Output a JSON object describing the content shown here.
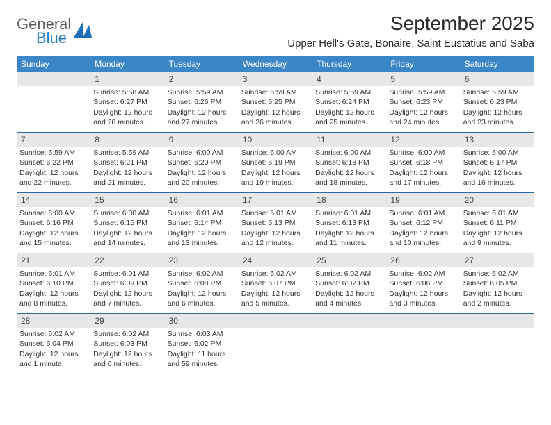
{
  "brand": {
    "line1": "General",
    "line2": "Blue"
  },
  "title": "September 2025",
  "location": "Upper Hell's Gate, Bonaire, Saint Eustatius and Saba",
  "colors": {
    "header_bg": "#3b86c6",
    "rule": "#2b6aa3",
    "daynum_bg": "#e7e7e7",
    "text": "#333333"
  },
  "daysOfWeek": [
    "Sunday",
    "Monday",
    "Tuesday",
    "Wednesday",
    "Thursday",
    "Friday",
    "Saturday"
  ],
  "weeks": [
    [
      null,
      {
        "n": "1",
        "sr": "5:58 AM",
        "ss": "6:27 PM",
        "dl": "12 hours and 28 minutes."
      },
      {
        "n": "2",
        "sr": "5:59 AM",
        "ss": "6:26 PM",
        "dl": "12 hours and 27 minutes."
      },
      {
        "n": "3",
        "sr": "5:59 AM",
        "ss": "6:25 PM",
        "dl": "12 hours and 26 minutes."
      },
      {
        "n": "4",
        "sr": "5:59 AM",
        "ss": "6:24 PM",
        "dl": "12 hours and 25 minutes."
      },
      {
        "n": "5",
        "sr": "5:59 AM",
        "ss": "6:23 PM",
        "dl": "12 hours and 24 minutes."
      },
      {
        "n": "6",
        "sr": "5:59 AM",
        "ss": "6:23 PM",
        "dl": "12 hours and 23 minutes."
      }
    ],
    [
      {
        "n": "7",
        "sr": "5:59 AM",
        "ss": "6:22 PM",
        "dl": "12 hours and 22 minutes."
      },
      {
        "n": "8",
        "sr": "5:59 AM",
        "ss": "6:21 PM",
        "dl": "12 hours and 21 minutes."
      },
      {
        "n": "9",
        "sr": "6:00 AM",
        "ss": "6:20 PM",
        "dl": "12 hours and 20 minutes."
      },
      {
        "n": "10",
        "sr": "6:00 AM",
        "ss": "6:19 PM",
        "dl": "12 hours and 19 minutes."
      },
      {
        "n": "11",
        "sr": "6:00 AM",
        "ss": "6:18 PM",
        "dl": "12 hours and 18 minutes."
      },
      {
        "n": "12",
        "sr": "6:00 AM",
        "ss": "6:18 PM",
        "dl": "12 hours and 17 minutes."
      },
      {
        "n": "13",
        "sr": "6:00 AM",
        "ss": "6:17 PM",
        "dl": "12 hours and 16 minutes."
      }
    ],
    [
      {
        "n": "14",
        "sr": "6:00 AM",
        "ss": "6:16 PM",
        "dl": "12 hours and 15 minutes."
      },
      {
        "n": "15",
        "sr": "6:00 AM",
        "ss": "6:15 PM",
        "dl": "12 hours and 14 minutes."
      },
      {
        "n": "16",
        "sr": "6:01 AM",
        "ss": "6:14 PM",
        "dl": "12 hours and 13 minutes."
      },
      {
        "n": "17",
        "sr": "6:01 AM",
        "ss": "6:13 PM",
        "dl": "12 hours and 12 minutes."
      },
      {
        "n": "18",
        "sr": "6:01 AM",
        "ss": "6:13 PM",
        "dl": "12 hours and 11 minutes."
      },
      {
        "n": "19",
        "sr": "6:01 AM",
        "ss": "6:12 PM",
        "dl": "12 hours and 10 minutes."
      },
      {
        "n": "20",
        "sr": "6:01 AM",
        "ss": "6:11 PM",
        "dl": "12 hours and 9 minutes."
      }
    ],
    [
      {
        "n": "21",
        "sr": "6:01 AM",
        "ss": "6:10 PM",
        "dl": "12 hours and 8 minutes."
      },
      {
        "n": "22",
        "sr": "6:01 AM",
        "ss": "6:09 PM",
        "dl": "12 hours and 7 minutes."
      },
      {
        "n": "23",
        "sr": "6:02 AM",
        "ss": "6:08 PM",
        "dl": "12 hours and 6 minutes."
      },
      {
        "n": "24",
        "sr": "6:02 AM",
        "ss": "6:07 PM",
        "dl": "12 hours and 5 minutes."
      },
      {
        "n": "25",
        "sr": "6:02 AM",
        "ss": "6:07 PM",
        "dl": "12 hours and 4 minutes."
      },
      {
        "n": "26",
        "sr": "6:02 AM",
        "ss": "6:06 PM",
        "dl": "12 hours and 3 minutes."
      },
      {
        "n": "27",
        "sr": "6:02 AM",
        "ss": "6:05 PM",
        "dl": "12 hours and 2 minutes."
      }
    ],
    [
      {
        "n": "28",
        "sr": "6:02 AM",
        "ss": "6:04 PM",
        "dl": "12 hours and 1 minute."
      },
      {
        "n": "29",
        "sr": "6:02 AM",
        "ss": "6:03 PM",
        "dl": "12 hours and 0 minutes."
      },
      {
        "n": "30",
        "sr": "6:03 AM",
        "ss": "6:02 PM",
        "dl": "11 hours and 59 minutes."
      },
      null,
      null,
      null,
      null
    ]
  ],
  "labels": {
    "sunrise": "Sunrise:",
    "sunset": "Sunset:",
    "daylight": "Daylight:"
  }
}
